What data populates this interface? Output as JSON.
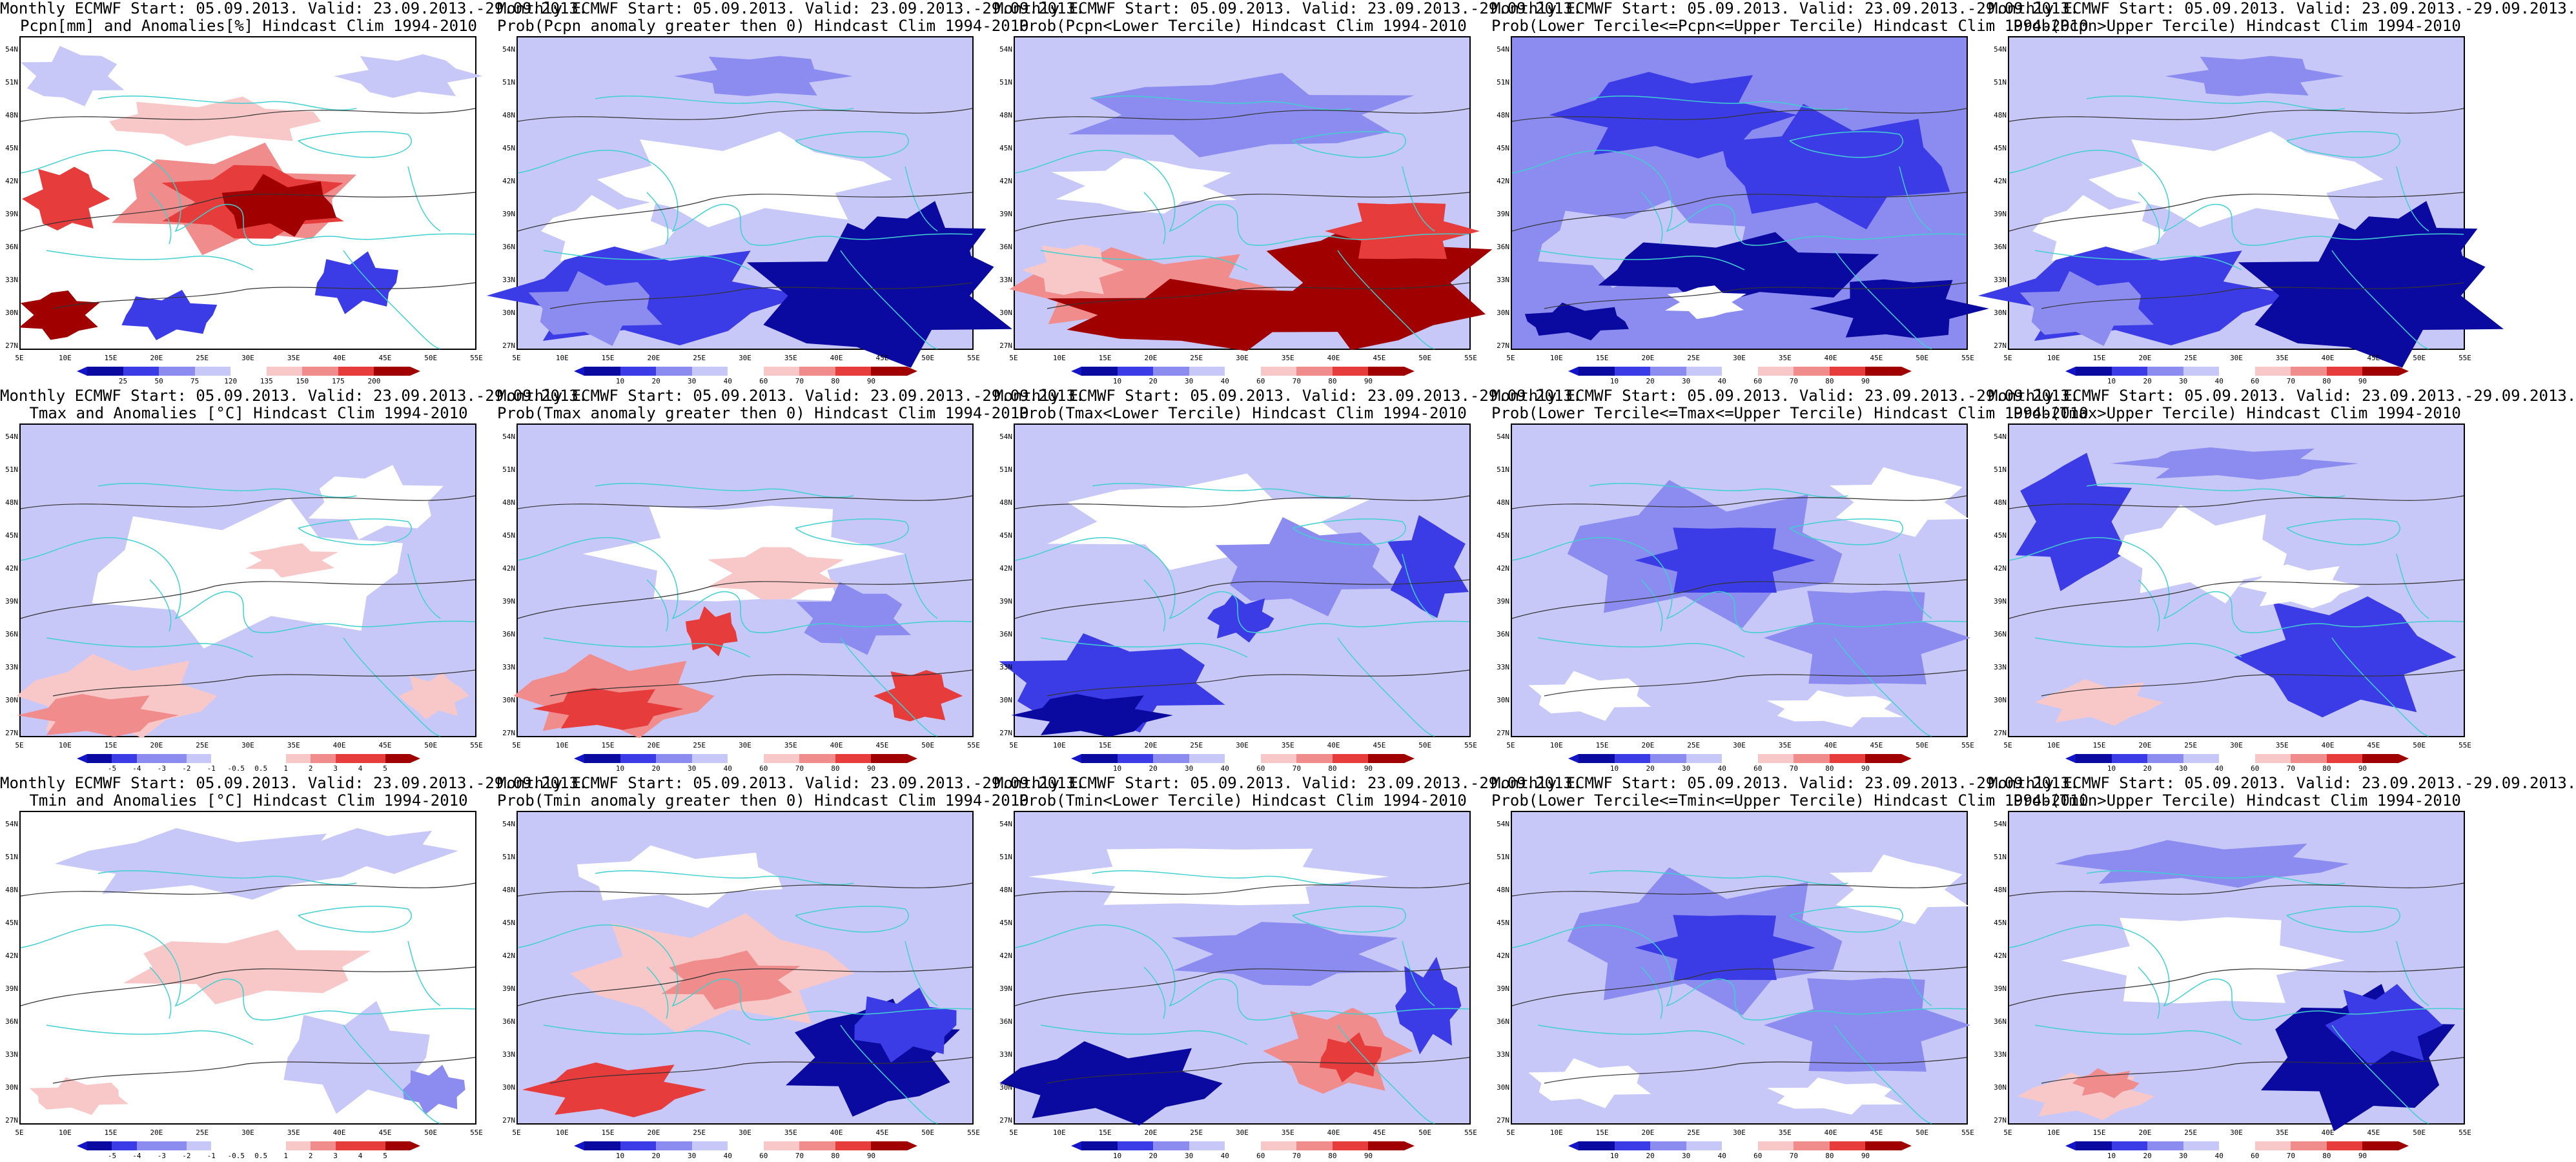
{
  "colors": {
    "coast": "#40d0d0",
    "contour": "#333333",
    "deep_blue": "#0a0aa0",
    "blue": "#3c3ce6",
    "mid_blue": "#8c8cf0",
    "light_blue": "#c8c8f8",
    "white": "#ffffff",
    "light_red": "#f8c8c8",
    "mid_red": "#f08c8c",
    "red": "#e63c3c",
    "dark_red": "#a00000"
  },
  "latitudes": [
    "54N",
    "51N",
    "48N",
    "45N",
    "42N",
    "39N",
    "36N",
    "33N",
    "30N",
    "27N"
  ],
  "longitudes": [
    "5E",
    "10E",
    "15E",
    "20E",
    "25E",
    "30E",
    "35E",
    "40E",
    "45E",
    "50E",
    "55E"
  ],
  "panels": [
    {
      "line1": "Monthly ECMWF Start: 05.09.2013. Valid: 23.09.2013.-29.09.2013.",
      "line2": "Pcpn[mm] and Anomalies[%] Hindcast Clim 1994-2010",
      "scale": [
        "25",
        "50",
        "75",
        "120",
        "135",
        "150",
        "175",
        "200"
      ],
      "pattern": "precip"
    },
    {
      "line1": "Monthly ECMWF Start: 05.09.2013. Valid: 23.09.2013.-29.09.2013.",
      "line2": "Prob(Pcpn anomaly greater then 0) Hindcast Clim 1994-2010",
      "scale": [
        "10",
        "20",
        "30",
        "40",
        "60",
        "70",
        "80",
        "90"
      ],
      "pattern": "southblue"
    },
    {
      "line1": "Monthly ECMWF Start: 05.09.2013. Valid: 23.09.2013.-29.09.2013.",
      "line2": "Prob(Pcpn<Lower Tercile) Hindcast Clim 1994-2010",
      "scale": [
        "10",
        "20",
        "30",
        "40",
        "60",
        "70",
        "80",
        "90"
      ],
      "pattern": "southred"
    },
    {
      "line1": "Monthly ECMWF Start: 05.09.2013. Valid: 23.09.2013.-29.09.2013.",
      "line2": "Prob(Lower Tercile<=Pcpn<=Upper Tercile) Hindcast Clim 1994-2010",
      "scale": [
        "10",
        "20",
        "30",
        "40",
        "60",
        "70",
        "80",
        "90"
      ],
      "pattern": "allblue"
    },
    {
      "line1": "Monthly ECMWF Start: 05.09.2013. Valid: 23.09.2013.-29.09.2013.",
      "line2": "Prob(Pcpn>Upper Tercile) Hindcast Clim 1994-2010",
      "scale": [
        "10",
        "20",
        "30",
        "40",
        "60",
        "70",
        "80",
        "90"
      ],
      "pattern": "southblue"
    },
    {
      "line1": "Monthly ECMWF Start: 05.09.2013. Valid: 23.09.2013.-29.09.2013.",
      "line2": "Tmax and Anomalies [°C] Hindcast Clim 1994-2010",
      "scale": [
        "-5",
        "-4",
        "-3",
        "-2",
        "-1",
        "-0.5",
        "0.5",
        "1",
        "2",
        "3",
        "4",
        "5"
      ],
      "pattern": "tmaxanom"
    },
    {
      "line1": "Monthly ECMWF Start: 05.09.2013. Valid: 23.09.2013.-29.09.2013.",
      "line2": "Prob(Tmax anomaly greater then 0) Hindcast Clim 1994-2010",
      "scale": [
        "10",
        "20",
        "30",
        "40",
        "60",
        "70",
        "80",
        "90"
      ],
      "pattern": "tmaxprob"
    },
    {
      "line1": "Monthly ECMWF Start: 05.09.2013. Valid: 23.09.2013.-29.09.2013.",
      "line2": "Prob(Tmax<Lower Tercile) Hindcast Clim 1994-2010",
      "scale": [
        "10",
        "20",
        "30",
        "40",
        "60",
        "70",
        "80",
        "90"
      ],
      "pattern": "bluesouth"
    },
    {
      "line1": "Monthly ECMWF Start: 05.09.2013. Valid: 23.09.2013.-29.09.2013.",
      "line2": "Prob(Lower Tercile<=Tmax<=Upper Tercile) Hindcast Clim 1994-2010",
      "scale": [
        "10",
        "20",
        "30",
        "40",
        "60",
        "70",
        "80",
        "90"
      ],
      "pattern": "allblue2"
    },
    {
      "line1": "Monthly ECMWF Start: 05.09.2013. Valid: 23.09.2013.-29.09.2013.",
      "line2": "Prob(Tmax>Upper Tercile) Hindcast Clim 1994-2010",
      "scale": [
        "10",
        "20",
        "30",
        "40",
        "60",
        "70",
        "80",
        "90"
      ],
      "pattern": "mixblue"
    },
    {
      "line1": "Monthly ECMWF Start: 05.09.2013. Valid: 23.09.2013.-29.09.2013.",
      "line2": "Tmin and Anomalies [°C] Hindcast Clim 1994-2010",
      "scale": [
        "-5",
        "-4",
        "-3",
        "-2",
        "-1",
        "-0.5",
        "0.5",
        "1",
        "2",
        "3",
        "4",
        "5"
      ],
      "pattern": "tminanom"
    },
    {
      "line1": "Monthly ECMWF Start: 05.09.2013. Valid: 23.09.2013.-29.09.2013.",
      "line2": "Prob(Tmin anomaly greater then 0) Hindcast Clim 1994-2010",
      "scale": [
        "10",
        "20",
        "30",
        "40",
        "60",
        "70",
        "80",
        "90"
      ],
      "pattern": "tminprob"
    },
    {
      "line1": "Monthly ECMWF Start: 05.09.2013. Valid: 23.09.2013.-29.09.2013.",
      "line2": "Prob(Tmin<Lower Tercile) Hindcast Clim 1994-2010",
      "scale": [
        "10",
        "20",
        "30",
        "40",
        "60",
        "70",
        "80",
        "90"
      ],
      "pattern": "bluesouth2"
    },
    {
      "line1": "Monthly ECMWF Start: 05.09.2013. Valid: 23.09.2013.-29.09.2013.",
      "line2": "Prob(Lower Tercile<=Tmin<=Upper Tercile) Hindcast Clim 1994-2010",
      "scale": [
        "10",
        "20",
        "30",
        "40",
        "60",
        "70",
        "80",
        "90"
      ],
      "pattern": "allblue2"
    },
    {
      "line1": "Monthly ECMWF Start: 05.09.2013. Valid: 23.09.2013.-29.09.2013.",
      "line2": "Prob(Tmin>Upper Tercile) Hindcast Clim 1994-2010",
      "scale": [
        "10",
        "20",
        "30",
        "40",
        "60",
        "70",
        "80",
        "90"
      ],
      "pattern": "eastblue"
    }
  ]
}
